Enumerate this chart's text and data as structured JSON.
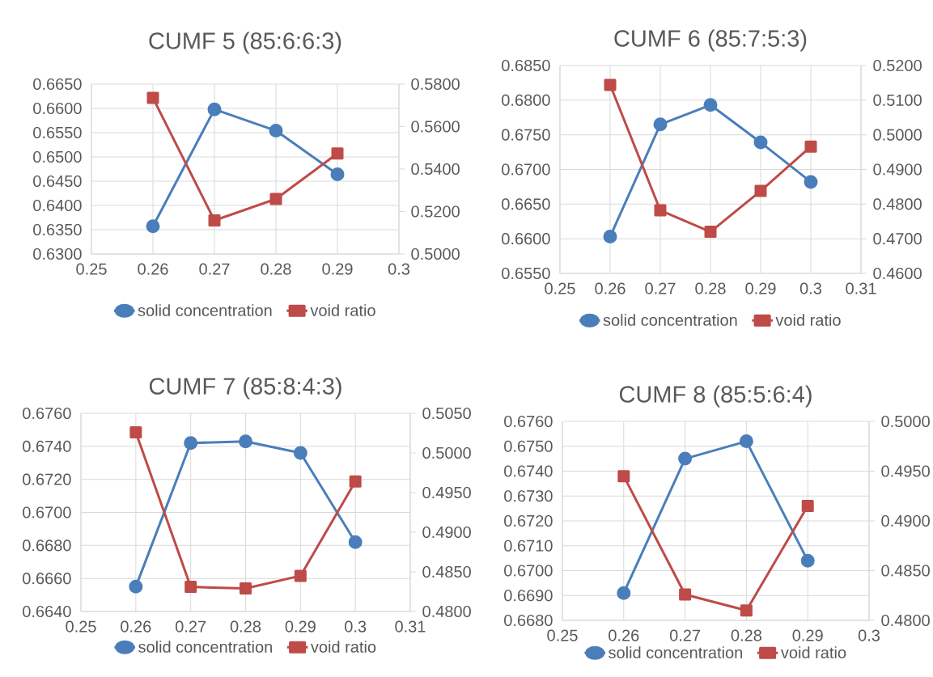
{
  "chart_data": [
    {
      "type": "line",
      "title": "CUMF 5 (85:6:6:3)",
      "x": [
        0.26,
        0.27,
        0.28,
        0.29
      ],
      "series": [
        {
          "name": "solid concentration",
          "color": "#4a7ebb",
          "marker": "circle",
          "values": [
            0.6357,
            0.6598,
            0.6554,
            0.6464
          ]
        },
        {
          "name": "void ratio",
          "color": "#be4b48",
          "marker": "square",
          "axis": "y2",
          "values": [
            0.5735,
            0.5158,
            0.5259,
            0.5473
          ]
        }
      ],
      "xlim": [
        0.25,
        0.3
      ],
      "xticks": [
        0.25,
        0.26,
        0.27,
        0.28,
        0.29,
        0.3
      ],
      "ylim": [
        0.63,
        0.665
      ],
      "yticks": [
        {
          "value": 0.63,
          "label": "0.6300"
        },
        {
          "value": 0.635,
          "label": "0.6350"
        },
        {
          "value": 0.64,
          "label": "0.6400"
        },
        {
          "value": 0.645,
          "label": "0.6450"
        },
        {
          "value": 0.65,
          "label": "0.6500"
        },
        {
          "value": 0.655,
          "label": "0.6550"
        },
        {
          "value": 0.66,
          "label": "0.6600"
        },
        {
          "value": 0.665,
          "label": "0.6650"
        }
      ],
      "y2lim": [
        0.5,
        0.58
      ],
      "y2ticks": [
        {
          "value": 0.5,
          "label": "0.5000"
        },
        {
          "value": 0.52,
          "label": "0.5200"
        },
        {
          "value": 0.54,
          "label": "0.5400"
        },
        {
          "value": 0.56,
          "label": "0.5600"
        },
        {
          "value": 0.58,
          "label": "0.5800"
        }
      ],
      "grid": true,
      "legend": "bottom"
    },
    {
      "type": "line",
      "title": "CUMF 6 (85:7:5:3)",
      "x": [
        0.26,
        0.27,
        0.28,
        0.29,
        0.3
      ],
      "series": [
        {
          "name": "solid concentration",
          "color": "#4a7ebb",
          "marker": "circle",
          "values": [
            0.6603,
            0.6765,
            0.6793,
            0.6739,
            0.6682
          ]
        },
        {
          "name": "void ratio",
          "color": "#be4b48",
          "marker": "square",
          "axis": "y2",
          "values": [
            0.5144,
            0.4782,
            0.472,
            0.4838,
            0.4966
          ]
        }
      ],
      "xlim": [
        0.25,
        0.31
      ],
      "xticks": [
        0.25,
        0.26,
        0.27,
        0.28,
        0.29,
        0.3,
        0.31
      ],
      "ylim": [
        0.655,
        0.685
      ],
      "yticks": [
        {
          "value": 0.655,
          "label": "0.6550"
        },
        {
          "value": 0.66,
          "label": "0.6600"
        },
        {
          "value": 0.665,
          "label": "0.6650"
        },
        {
          "value": 0.67,
          "label": "0.6700"
        },
        {
          "value": 0.675,
          "label": "0.6750"
        },
        {
          "value": 0.68,
          "label": "0.6800"
        },
        {
          "value": 0.685,
          "label": "0.6850"
        }
      ],
      "y2lim": [
        0.46,
        0.52
      ],
      "y2ticks": [
        {
          "value": 0.46,
          "label": "0.4600"
        },
        {
          "value": 0.47,
          "label": "0.4700"
        },
        {
          "value": 0.48,
          "label": "0.4800"
        },
        {
          "value": 0.49,
          "label": "0.4900"
        },
        {
          "value": 0.5,
          "label": "0.5000"
        },
        {
          "value": 0.51,
          "label": "0.5100"
        },
        {
          "value": 0.52,
          "label": "0.5200"
        }
      ],
      "grid": true,
      "legend": "bottom"
    },
    {
      "type": "line",
      "title": "CUMF 7 (85:8:4:3)",
      "x": [
        0.26,
        0.27,
        0.28,
        0.29,
        0.3
      ],
      "series": [
        {
          "name": "solid concentration",
          "color": "#4a7ebb",
          "marker": "circle",
          "values": [
            0.6655,
            0.6742,
            0.6743,
            0.6736,
            0.6682
          ]
        },
        {
          "name": "void ratio",
          "color": "#be4b48",
          "marker": "square",
          "axis": "y2",
          "values": [
            0.5026,
            0.4831,
            0.4829,
            0.4845,
            0.4964
          ]
        }
      ],
      "xlim": [
        0.25,
        0.31
      ],
      "xticks": [
        0.25,
        0.26,
        0.27,
        0.28,
        0.29,
        0.3,
        0.31
      ],
      "ylim": [
        0.664,
        0.676
      ],
      "yticks": [
        {
          "value": 0.664,
          "label": "0.6640"
        },
        {
          "value": 0.666,
          "label": "0.6660"
        },
        {
          "value": 0.668,
          "label": "0.6680"
        },
        {
          "value": 0.67,
          "label": "0.6700"
        },
        {
          "value": 0.672,
          "label": "0.6720"
        },
        {
          "value": 0.674,
          "label": "0.6740"
        },
        {
          "value": 0.676,
          "label": "0.6760"
        }
      ],
      "y2lim": [
        0.48,
        0.505
      ],
      "y2ticks": [
        {
          "value": 0.48,
          "label": "0.4800"
        },
        {
          "value": 0.485,
          "label": "0.4850"
        },
        {
          "value": 0.49,
          "label": "0.4900"
        },
        {
          "value": 0.495,
          "label": "0.4950"
        },
        {
          "value": 0.5,
          "label": "0.5000"
        },
        {
          "value": 0.505,
          "label": "0.5050"
        }
      ],
      "grid": true,
      "legend": "bottom"
    },
    {
      "type": "line",
      "title": "CUMF 8 (85:5:6:4)",
      "x": [
        0.26,
        0.27,
        0.28,
        0.29
      ],
      "series": [
        {
          "name": "solid concentration",
          "color": "#4a7ebb",
          "marker": "circle",
          "values": [
            0.6691,
            0.6745,
            0.6752,
            0.6704
          ]
        },
        {
          "name": "void ratio",
          "color": "#be4b48",
          "marker": "square",
          "axis": "y2",
          "values": [
            0.4945,
            0.4826,
            0.481,
            0.4915
          ]
        }
      ],
      "xlim": [
        0.25,
        0.3
      ],
      "xticks": [
        0.25,
        0.26,
        0.27,
        0.28,
        0.29,
        0.3
      ],
      "ylim": [
        0.668,
        0.676
      ],
      "yticks": [
        {
          "value": 0.668,
          "label": "0.6680"
        },
        {
          "value": 0.669,
          "label": "0.6690"
        },
        {
          "value": 0.67,
          "label": "0.6700"
        },
        {
          "value": 0.671,
          "label": "0.6710"
        },
        {
          "value": 0.672,
          "label": "0.6720"
        },
        {
          "value": 0.673,
          "label": "0.6730"
        },
        {
          "value": 0.674,
          "label": "0.6740"
        },
        {
          "value": 0.675,
          "label": "0.6750"
        },
        {
          "value": 0.676,
          "label": "0.6760"
        }
      ],
      "y2lim": [
        0.48,
        0.5
      ],
      "y2ticks": [
        {
          "value": 0.48,
          "label": "0.4800"
        },
        {
          "value": 0.485,
          "label": "0.4850"
        },
        {
          "value": 0.49,
          "label": "0.4900"
        },
        {
          "value": 0.495,
          "label": "0.4950"
        },
        {
          "value": 0.5,
          "label": "0.5000"
        }
      ],
      "grid": true,
      "legend": "bottom"
    }
  ]
}
